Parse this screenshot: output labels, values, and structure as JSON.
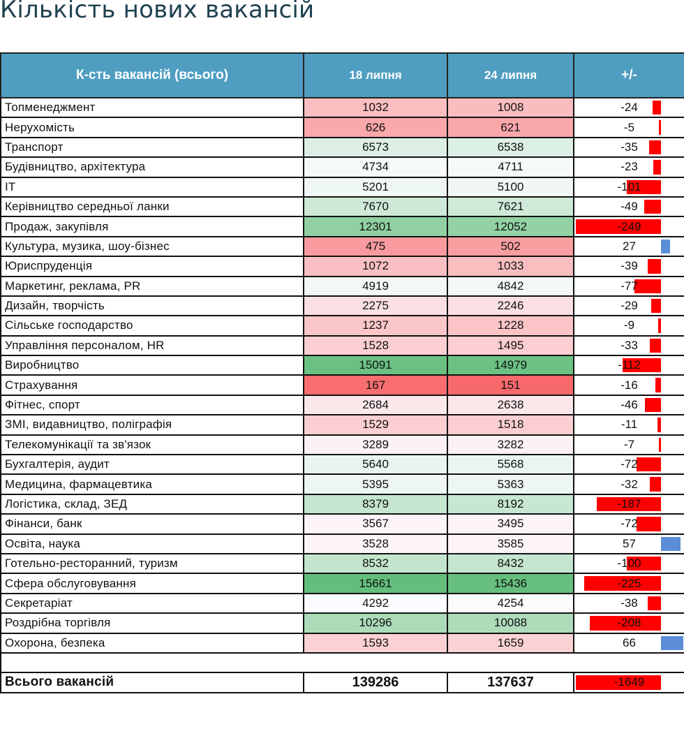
{
  "title": "Кількість нових вакансій",
  "headers": {
    "name": "К-сть вакансій (всього)",
    "date1": "18 липня",
    "date2": "24 липня",
    "diff": "+/-"
  },
  "colors": {
    "header_bg": "#4f9ec2",
    "negative_bar": "#ff0000",
    "positive_bar": "#5b8ed6"
  },
  "rows": [
    {
      "name": "Топменеджмент",
      "v1": "1032",
      "v2": "1008",
      "diff": "-24"
    },
    {
      "name": "Нерухомість",
      "v1": "626",
      "v2": "621",
      "diff": "-5"
    },
    {
      "name": "Транспорт",
      "v1": "6573",
      "v2": "6538",
      "diff": "-35"
    },
    {
      "name": "Будівництво, архітектура",
      "v1": "4734",
      "v2": "4711",
      "diff": "-23"
    },
    {
      "name": "IT",
      "v1": "5201",
      "v2": "5100",
      "diff": "-101"
    },
    {
      "name": "Керівництво середньої ланки",
      "v1": "7670",
      "v2": "7621",
      "diff": "-49"
    },
    {
      "name": "Продаж, закупівля",
      "v1": "12301",
      "v2": "12052",
      "diff": "-249"
    },
    {
      "name": "Культура, музика, шоу-бізнес",
      "v1": "475",
      "v2": "502",
      "diff": "27"
    },
    {
      "name": "Юриспруденція",
      "v1": "1072",
      "v2": "1033",
      "diff": "-39"
    },
    {
      "name": "Маркетинг, реклама, PR",
      "v1": "4919",
      "v2": "4842",
      "diff": "-77"
    },
    {
      "name": "Дизайн, творчість",
      "v1": "2275",
      "v2": "2246",
      "diff": "-29"
    },
    {
      "name": "Сільське господарство",
      "v1": "1237",
      "v2": "1228",
      "diff": "-9"
    },
    {
      "name": "Управління персоналом, HR",
      "v1": "1528",
      "v2": "1495",
      "diff": "-33"
    },
    {
      "name": "Виробництво",
      "v1": "15091",
      "v2": "14979",
      "diff": "-112"
    },
    {
      "name": "Страхування",
      "v1": "167",
      "v2": "151",
      "diff": "-16"
    },
    {
      "name": "Фітнес, спорт",
      "v1": "2684",
      "v2": "2638",
      "diff": "-46"
    },
    {
      "name": "ЗМІ, видавництво, поліграфія",
      "v1": "1529",
      "v2": "1518",
      "diff": "-11"
    },
    {
      "name": "Телекомунікації та зв'язок",
      "v1": "3289",
      "v2": "3282",
      "diff": "-7"
    },
    {
      "name": "Бухгалтерія, аудит",
      "v1": "5640",
      "v2": "5568",
      "diff": "-72"
    },
    {
      "name": "Медицина, фармацевтика",
      "v1": "5395",
      "v2": "5363",
      "diff": "-32"
    },
    {
      "name": "Логістика, склад, ЗЕД",
      "v1": "8379",
      "v2": "8192",
      "diff": "-187"
    },
    {
      "name": "Фінанси, банк",
      "v1": "3567",
      "v2": "3495",
      "diff": "-72"
    },
    {
      "name": "Освіта, наука",
      "v1": "3528",
      "v2": "3585",
      "diff": "57"
    },
    {
      "name": "Готельно-ресторанний, туризм",
      "v1": "8532",
      "v2": "8432",
      "diff": "-100"
    },
    {
      "name": "Сфера обслуговування",
      "v1": "15661",
      "v2": "15436",
      "diff": "-225"
    },
    {
      "name": "Секретаріат",
      "v1": "4292",
      "v2": "4254",
      "diff": "-38"
    },
    {
      "name": "Роздрібна торгівля",
      "v1": "10296",
      "v2": "10088",
      "diff": "-208"
    },
    {
      "name": "Охорона, безпека",
      "v1": "1593",
      "v2": "1659",
      "diff": "66"
    }
  ],
  "total": {
    "name": "Всього вакансій",
    "v1": "139286",
    "v2": "137637",
    "diff": "-1649"
  }
}
